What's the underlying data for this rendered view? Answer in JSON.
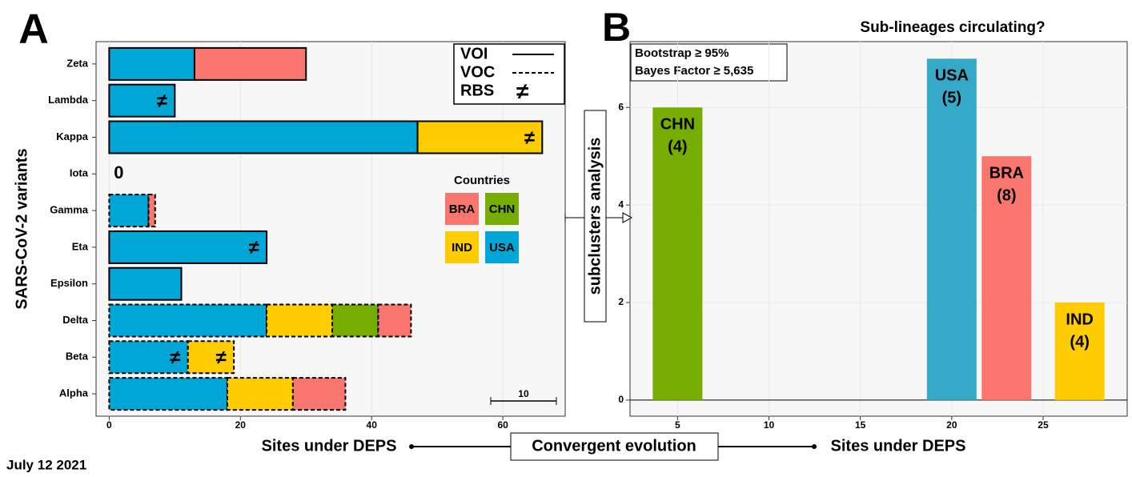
{
  "chart_data": [
    {
      "type": "hbar_stacked",
      "panel": "A",
      "ylabel": "SARS-CoV-2 variants",
      "xlabel": "Sites under DEPS",
      "categories": [
        "Zeta",
        "Lambda",
        "Kappa",
        "Iota",
        "Gamma",
        "Eta",
        "Epsilon",
        "Delta",
        "Beta",
        "Alpha"
      ],
      "variant_class": [
        "VOI",
        "VOI",
        "VOI",
        "VOI",
        "VOC",
        "VOI",
        "VOI",
        "VOC",
        "VOC",
        "VOC"
      ],
      "series": [
        {
          "name": "USA",
          "color": "#00a6d6",
          "values": [
            13,
            10,
            47,
            0,
            6,
            24,
            11,
            24,
            12,
            18
          ],
          "rbs": [
            "Lambda",
            "Eta",
            "Beta"
          ]
        },
        {
          "name": "IND",
          "color": "#ffcc00",
          "values": [
            0,
            0,
            19,
            0,
            0,
            0,
            0,
            10,
            7,
            10
          ],
          "rbs": [
            "Kappa",
            "Beta"
          ]
        },
        {
          "name": "CHN",
          "color": "#77ac00",
          "values": [
            0,
            0,
            0,
            0,
            0,
            0,
            0,
            7,
            0,
            0
          ],
          "rbs": []
        },
        {
          "name": "BRA",
          "color": "#f8766d",
          "values": [
            17,
            0,
            0,
            0,
            1,
            0,
            0,
            5,
            0,
            8
          ],
          "rbs": []
        }
      ],
      "xlim": [
        -2,
        69.5
      ],
      "xticks": [
        0,
        20,
        40,
        60
      ],
      "grid": true,
      "line_legend": [
        {
          "label": "VOI",
          "dash": "solid"
        },
        {
          "label": "VOC",
          "dash": "dashed"
        },
        {
          "label": "RBS",
          "symbol": "≠"
        }
      ],
      "legend_title": "Countries",
      "annotations": [
        {
          "category": "Iota",
          "text": "0"
        }
      ],
      "scale_bar": 10
    },
    {
      "type": "bar",
      "panel": "B",
      "title": "Sub-lineages circulating?",
      "ylabel": "subclusters analysis",
      "xlabel": "Sites under DEPS",
      "x": [
        5,
        20,
        23,
        27
      ],
      "categories": [
        "CHN",
        "USA",
        "BRA",
        "IND"
      ],
      "values": [
        6,
        7,
        5,
        2
      ],
      "count_labels": [
        "(4)",
        "(5)",
        "(8)",
        "(4)"
      ],
      "colors": [
        "#77ac00",
        "#36a9c8",
        "#f8766d",
        "#ffcc00"
      ],
      "xlim": [
        2.4,
        29.6
      ],
      "xticks": [
        5,
        10,
        15,
        20,
        25
      ],
      "ylim": [
        -0.33,
        7.35
      ],
      "yticks": [
        0,
        2,
        4,
        6
      ],
      "grid": true,
      "notes": [
        "Bootstrap ≥ 95%",
        "Bayes Factor ≥ 5,635"
      ]
    }
  ],
  "figure": {
    "connector": "Convergent evolution",
    "date": "July 12 2021"
  }
}
